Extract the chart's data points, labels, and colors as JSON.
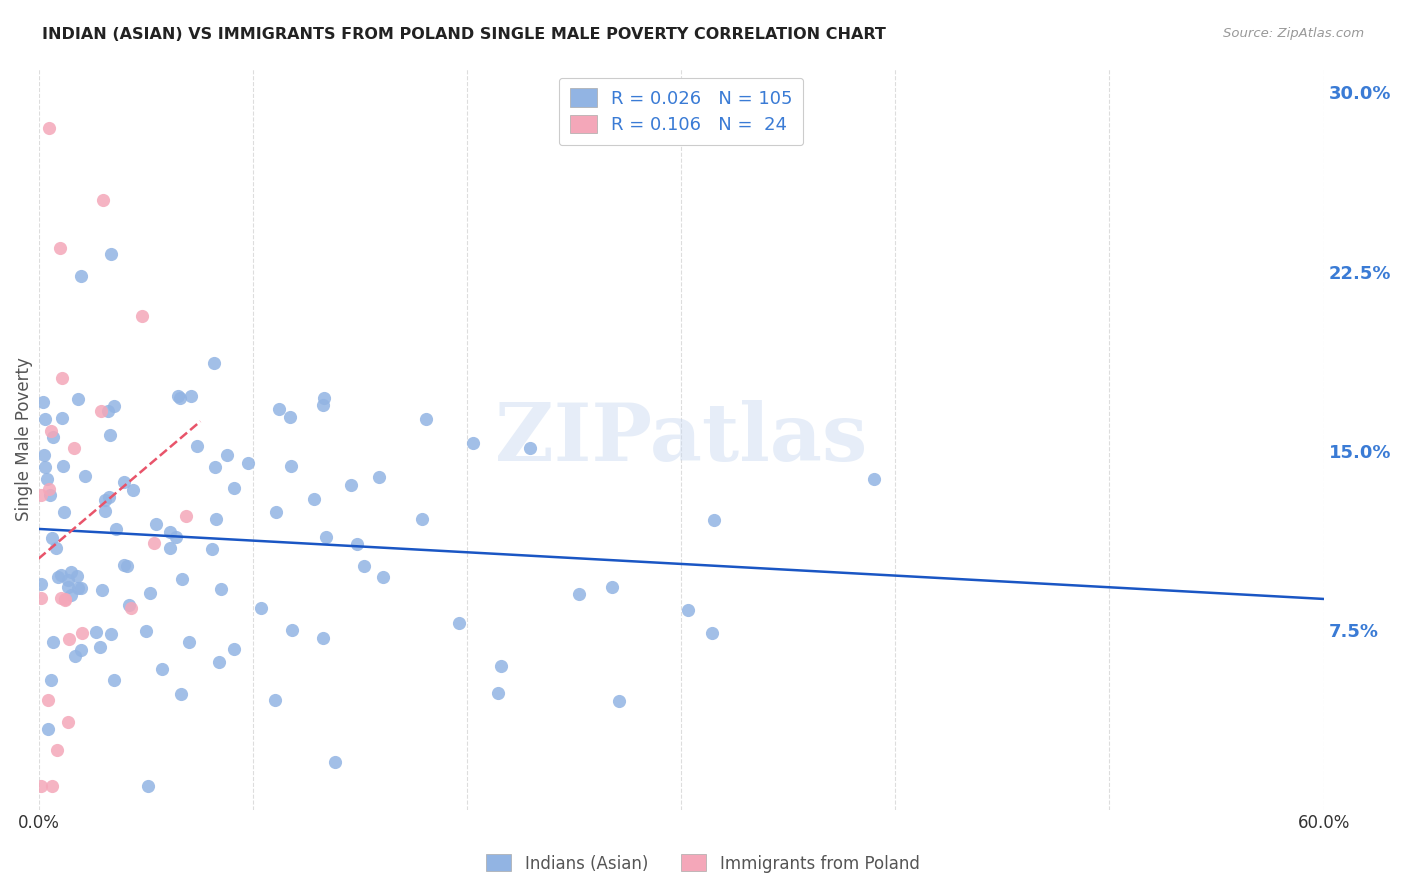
{
  "title": "INDIAN (ASIAN) VS IMMIGRANTS FROM POLAND SINGLE MALE POVERTY CORRELATION CHART",
  "source": "Source: ZipAtlas.com",
  "ylabel": "Single Male Poverty",
  "x_min": 0.0,
  "x_max": 0.6,
  "y_min": 0.0,
  "y_max": 0.31,
  "x_ticks": [
    0.0,
    0.1,
    0.2,
    0.3,
    0.4,
    0.5,
    0.6
  ],
  "x_tick_labels": [
    "0.0%",
    "",
    "",
    "",
    "",
    "",
    "60.0%"
  ],
  "y_ticks": [
    0.075,
    0.15,
    0.225,
    0.3
  ],
  "y_tick_labels": [
    "7.5%",
    "15.0%",
    "22.5%",
    "30.0%"
  ],
  "legend_labels": [
    "Indians (Asian)",
    "Immigrants from Poland"
  ],
  "blue_color": "#92b4e3",
  "pink_color": "#f4a7b9",
  "blue_line_color": "#1a56c4",
  "pink_line_color": "#e8546a",
  "legend_text_color": "#3a7bd5",
  "r_blue": 0.026,
  "n_blue": 105,
  "r_pink": 0.106,
  "n_pink": 24,
  "watermark": "ZIPatlas",
  "background_color": "#ffffff",
  "grid_color": "#dddddd"
}
